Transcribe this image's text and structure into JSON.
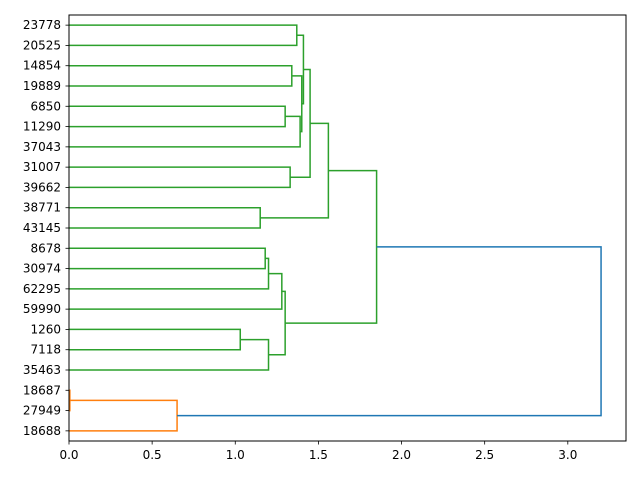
{
  "chart_data": {
    "type": "dendrogram",
    "orientation": "horizontal",
    "title": "",
    "xlabel": "",
    "ylabel": "",
    "xlim": [
      0.0,
      3.35
    ],
    "x_ticks": [
      "0.0",
      "0.5",
      "1.0",
      "1.5",
      "2.0",
      "2.5",
      "3.0"
    ],
    "x_tick_values": [
      0.0,
      0.5,
      1.0,
      1.5,
      2.0,
      2.5,
      3.0
    ],
    "leaves": [
      "23778",
      "20525",
      "14854",
      "19889",
      "6850",
      "11290",
      "37043",
      "31007",
      "39662",
      "38771",
      "43145",
      "8678",
      "30974",
      "62295",
      "59990",
      "1260",
      "7118",
      "35463",
      "18687",
      "27949",
      "18688"
    ],
    "cluster_colors": {
      "C1": "#2ca02c",
      "C2": "#ff7f0e",
      "root": "#1f77b4"
    },
    "merges": [
      {
        "left": "23778",
        "right": "20525",
        "height": 1.37,
        "cluster": "C1"
      },
      {
        "left": "14854",
        "right": "19889",
        "height": 1.34,
        "cluster": "C1"
      },
      {
        "left": "6850",
        "right": "11290",
        "height": 1.3,
        "cluster": "C1"
      },
      {
        "left": "[6850,11290]",
        "right": "37043",
        "height": 1.39,
        "cluster": "C1"
      },
      {
        "left": "[14854,19889]",
        "right": "[6850,11290,37043]",
        "height": 1.4,
        "cluster": "C1"
      },
      {
        "left": "[23778,20525]",
        "right": "[14854..37043]",
        "height": 1.41,
        "cluster": "C1"
      },
      {
        "left": "31007",
        "right": "39662",
        "height": 1.33,
        "cluster": "C1"
      },
      {
        "left": "[23778..37043]",
        "right": "[31007,39662]",
        "height": 1.45,
        "cluster": "C1"
      },
      {
        "left": "38771",
        "right": "43145",
        "height": 1.15,
        "cluster": "C1"
      },
      {
        "left": "[23778..39662]",
        "right": "[38771,43145]",
        "height": 1.56,
        "cluster": "C1"
      },
      {
        "left": "8678",
        "right": "30974",
        "height": 1.18,
        "cluster": "C1"
      },
      {
        "left": "[8678,30974]",
        "right": "62295",
        "height": 1.2,
        "cluster": "C1"
      },
      {
        "left": "[8678..62295]",
        "right": "59990",
        "height": 1.28,
        "cluster": "C1"
      },
      {
        "left": "1260",
        "right": "7118",
        "height": 1.03,
        "cluster": "C1"
      },
      {
        "left": "[1260,7118]",
        "right": "35463",
        "height": 1.2,
        "cluster": "C1"
      },
      {
        "left": "[8678..59990]",
        "right": "[1260..35463]",
        "height": 1.3,
        "cluster": "C1"
      },
      {
        "left": "[23778..43145]",
        "right": "[8678..35463]",
        "height": 1.85,
        "cluster": "C1"
      },
      {
        "left": "18687",
        "right": "27949",
        "height": 0.005,
        "cluster": "C2"
      },
      {
        "left": "[18687,27949]",
        "right": "18688",
        "height": 0.65,
        "cluster": "C2"
      },
      {
        "left": "[C1]",
        "right": "[C2]",
        "height": 3.2,
        "cluster": "root"
      }
    ]
  }
}
